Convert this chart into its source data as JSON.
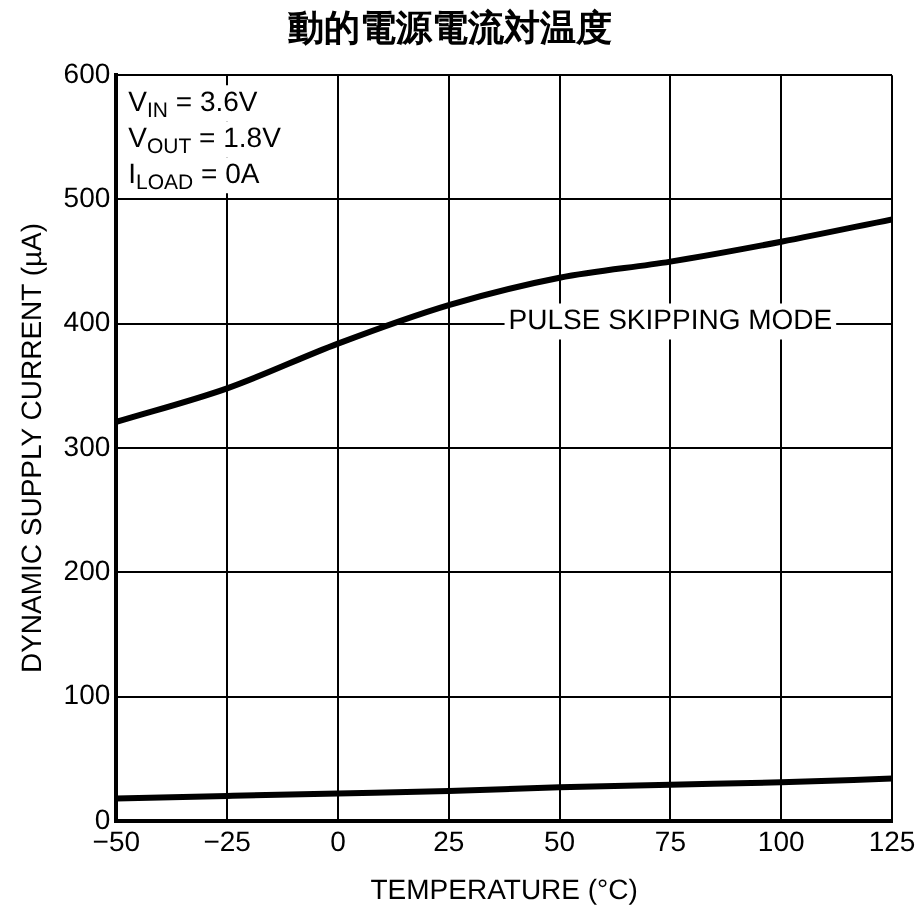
{
  "chart_data": {
    "type": "line",
    "title": "動的電源電流対温度",
    "xlabel": "TEMPERATURE (°C)",
    "ylabel": "DYNAMIC SUPPLY CURRENT (µA)",
    "x": [
      -50,
      -25,
      0,
      25,
      50,
      75,
      100,
      125
    ],
    "series": [
      {
        "name": "PULSE SKIPPING MODE",
        "color": "#000000",
        "values": [
          321,
          348,
          384,
          415,
          437,
          450,
          466,
          484
        ]
      },
      {
        "color": "#000000",
        "values": [
          18,
          20,
          22,
          24,
          27,
          29,
          31,
          34
        ]
      }
    ],
    "xlim": [
      -50,
      125
    ],
    "xticks": [
      {
        "value": -50,
        "label": "−50"
      },
      {
        "value": -25,
        "label": "−25"
      },
      0,
      25,
      50,
      75,
      100,
      125
    ],
    "ylim": [
      0,
      600
    ],
    "yticks": [
      0,
      100,
      200,
      300,
      400,
      500,
      600
    ],
    "grid": true,
    "legend": false,
    "marker": "none",
    "line_style": "solid",
    "annotations": [
      "V$_{IN}$ = 3.6V",
      "V$_{OUT}$ = 1.8V",
      "I$_{LOAD}$ = 0A"
    ]
  }
}
